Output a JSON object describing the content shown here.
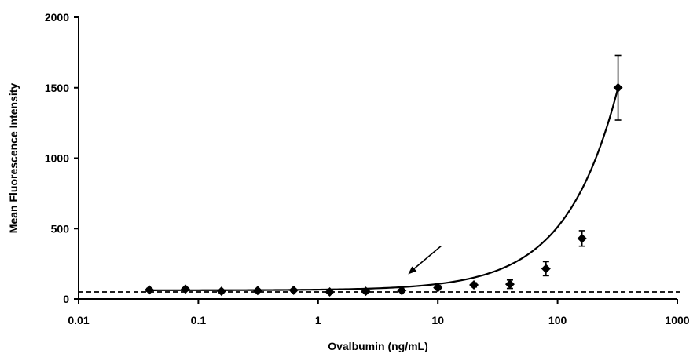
{
  "chart_data": {
    "type": "scatter",
    "title": "",
    "xlabel": "Ovalbumin (ng/mL)",
    "ylabel": "Mean Fluorescence Intensity",
    "x_scale": "log",
    "xlim": [
      0.01,
      1000
    ],
    "ylim": [
      0,
      2000
    ],
    "x_ticks": [
      "0.01",
      "0.1",
      "1",
      "10",
      "100",
      "1000"
    ],
    "y_ticks": [
      "0",
      "500",
      "1000",
      "1500",
      "2000"
    ],
    "grid": false,
    "legend": "none",
    "colors": {
      "points": "#000000",
      "curve": "#000000",
      "baseline": "#000000"
    },
    "series": [
      {
        "marker": "diamond",
        "x": [
          0.039,
          0.078,
          0.156,
          0.313,
          0.625,
          1.25,
          2.5,
          5,
          10,
          20,
          40,
          80,
          160,
          320
        ],
        "y": [
          65,
          70,
          55,
          60,
          62,
          50,
          55,
          60,
          80,
          100,
          105,
          215,
          430,
          1500
        ],
        "error": [
          10,
          10,
          8,
          8,
          8,
          8,
          8,
          8,
          15,
          15,
          30,
          50,
          55,
          230
        ]
      }
    ],
    "fit_curve": {
      "style": "solid",
      "shape": "exponential rise through the data points"
    },
    "baseline": {
      "y": 50,
      "style": "dashed"
    },
    "annotation": {
      "type": "arrow",
      "target_x": 5,
      "target_y": 120
    }
  }
}
